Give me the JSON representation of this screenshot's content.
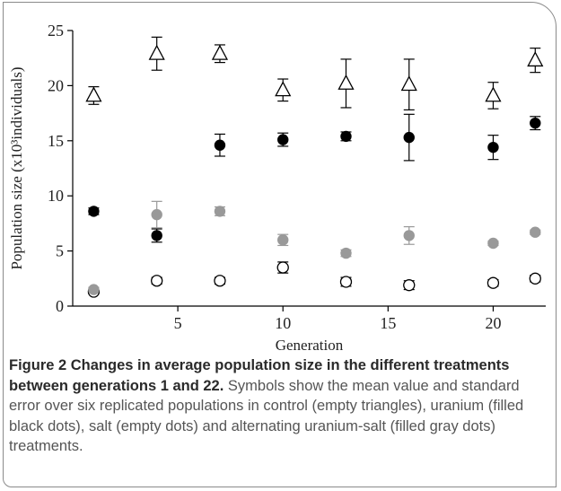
{
  "caption": {
    "title": "Figure 2 Changes in average population size in the different treatments between generations 1 and 22.",
    "text": "Symbols show the mean value and standard error over six replicated populations in control (empty triangles), uranium (filled black dots), salt (empty dots) and alternating uranium-salt (filled gray dots) treatments."
  },
  "chart_data": {
    "type": "scatter",
    "xlabel": "Generation",
    "ylabel": "Population size (x10³individuals)",
    "xlim": [
      0,
      22.5
    ],
    "ylim": [
      0,
      25
    ],
    "xticks": [
      5,
      10,
      15,
      20
    ],
    "yticks": [
      0,
      5,
      10,
      15,
      20,
      25
    ],
    "grid": false,
    "error_bars": "standard error",
    "series": [
      {
        "marker": "empty-triangle",
        "color": "#000000",
        "x": [
          1,
          4,
          7,
          10,
          13,
          16,
          20,
          22
        ],
        "y": [
          19.1,
          22.9,
          22.9,
          19.6,
          20.2,
          20.1,
          19.1,
          22.3
        ],
        "err": [
          0.8,
          1.5,
          0.8,
          1.0,
          2.2,
          2.3,
          1.2,
          1.1
        ]
      },
      {
        "marker": "filled-black-dot",
        "color": "#000000",
        "x": [
          1,
          4,
          7,
          10,
          13,
          16,
          20,
          22
        ],
        "y": [
          8.6,
          6.4,
          14.6,
          15.1,
          15.4,
          15.3,
          14.4,
          16.6
        ],
        "err": [
          0.3,
          0.6,
          1.0,
          0.6,
          0.4,
          2.1,
          1.1,
          0.6
        ]
      },
      {
        "marker": "empty-dot",
        "color": "#000000",
        "x": [
          1,
          4,
          7,
          10,
          13,
          16,
          20,
          22
        ],
        "y": [
          1.3,
          2.3,
          2.3,
          3.5,
          2.2,
          1.9,
          2.1,
          2.5
        ],
        "err": [
          0.2,
          0.3,
          0.3,
          0.5,
          0.4,
          0.4,
          0.3,
          0.3
        ]
      },
      {
        "marker": "filled-gray-dot",
        "color": "#999999",
        "x": [
          1,
          4,
          7,
          10,
          13,
          16,
          20,
          22
        ],
        "y": [
          1.5,
          8.3,
          8.6,
          6.0,
          4.8,
          6.4,
          5.7,
          6.7
        ],
        "err": [
          0.2,
          1.2,
          0.4,
          0.5,
          0.3,
          0.8,
          0.2,
          0.2
        ]
      }
    ]
  }
}
